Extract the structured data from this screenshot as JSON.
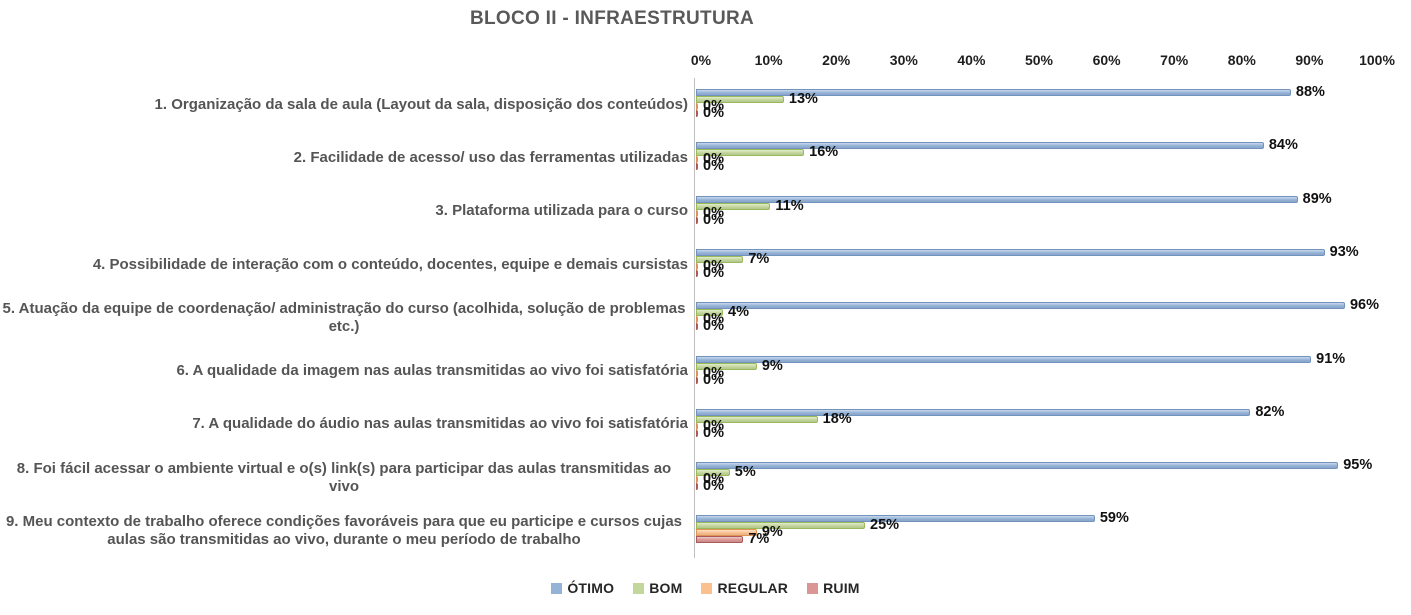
{
  "chart_data": {
    "type": "bar",
    "orientation": "horizontal",
    "title": "BLOCO II - INFRAESTRUTURA",
    "xlabel": "",
    "ylabel": "",
    "xlim": [
      0,
      100
    ],
    "x_ticks": [
      0,
      10,
      20,
      30,
      40,
      50,
      60,
      70,
      80,
      90,
      100
    ],
    "x_tick_suffix": "%",
    "grid": false,
    "legend_position": "bottom",
    "data_label_suffix": "%",
    "categories": [
      "1. Organização da sala de aula (Layout da sala, disposição dos conteúdos)",
      "2. Facilidade de acesso/ uso das ferramentas utilizadas",
      "3. Plataforma utilizada para o curso",
      "4. Possibilidade de interação com o conteúdo, docentes, equipe e demais cursistas",
      "5. Atuação da equipe de coordenação/ administração do curso (acolhida, solução de problemas etc.)",
      "6. A qualidade da imagem nas aulas transmitidas ao vivo foi satisfatória",
      "7. A qualidade do áudio nas aulas transmitidas ao vivo foi satisfatória",
      "8. Foi fácil acessar o ambiente virtual e o(s) link(s) para participar das aulas transmitidas ao vivo",
      "9. Meu contexto de trabalho oferece condições favoráveis para que eu participe e cursos cujas aulas são transmitidas ao vivo, durante o meu período de trabalho"
    ],
    "series": [
      {
        "name": "ÓTIMO",
        "color": "#95B3D7",
        "border": "#7193BD",
        "values": [
          88,
          84,
          89,
          93,
          96,
          91,
          82,
          95,
          59
        ]
      },
      {
        "name": "BOM",
        "color": "#C3D69B",
        "border": "#9ABA59",
        "values": [
          13,
          16,
          11,
          7,
          4,
          9,
          18,
          5,
          25
        ]
      },
      {
        "name": "REGULAR",
        "color": "#FAC090",
        "border": "#DD9455",
        "values": [
          0,
          0,
          0,
          0,
          0,
          0,
          0,
          0,
          9
        ]
      },
      {
        "name": "RUIM",
        "color": "#D99694",
        "border": "#AB5A57",
        "values": [
          0,
          0,
          0,
          0,
          0,
          0,
          0,
          0,
          7
        ]
      }
    ]
  }
}
